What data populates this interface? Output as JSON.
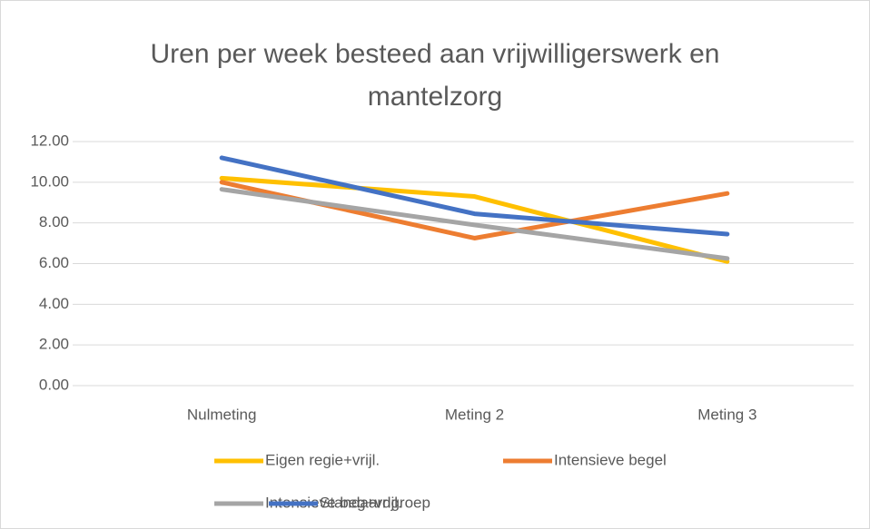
{
  "chart_data": {
    "type": "line",
    "title_lines": [
      "Uren per week besteed aan vrijwilligerswerk en",
      "mantelzorg"
    ],
    "categories": [
      "Nulmeting",
      "Meting 2",
      "Meting 3"
    ],
    "series": [
      {
        "name": "Eigen regie+vrijl.",
        "color": "#FFC000",
        "values": [
          10.2,
          9.3,
          6.1
        ]
      },
      {
        "name": "Intensieve begel",
        "color": "#ED7D31",
        "values": [
          10.0,
          7.25,
          9.45
        ]
      },
      {
        "name": "Intensieve beg+vrijl.",
        "color": "#A5A5A5",
        "values": [
          9.65,
          7.9,
          6.25
        ]
      },
      {
        "name": "Standaardgroep",
        "color": "#4472C4",
        "values": [
          11.2,
          8.45,
          7.45
        ]
      }
    ],
    "ylim": [
      0,
      12
    ],
    "yticks": [
      {
        "value": 0,
        "label": "0.00"
      },
      {
        "value": 2,
        "label": "2.00"
      },
      {
        "value": 4,
        "label": "4.00"
      },
      {
        "value": 6,
        "label": "6.00"
      },
      {
        "value": 8,
        "label": "8.00"
      },
      {
        "value": 10,
        "label": "10.00"
      },
      {
        "value": 12,
        "label": "12.00"
      }
    ],
    "grid": true,
    "legend": "bottom"
  }
}
